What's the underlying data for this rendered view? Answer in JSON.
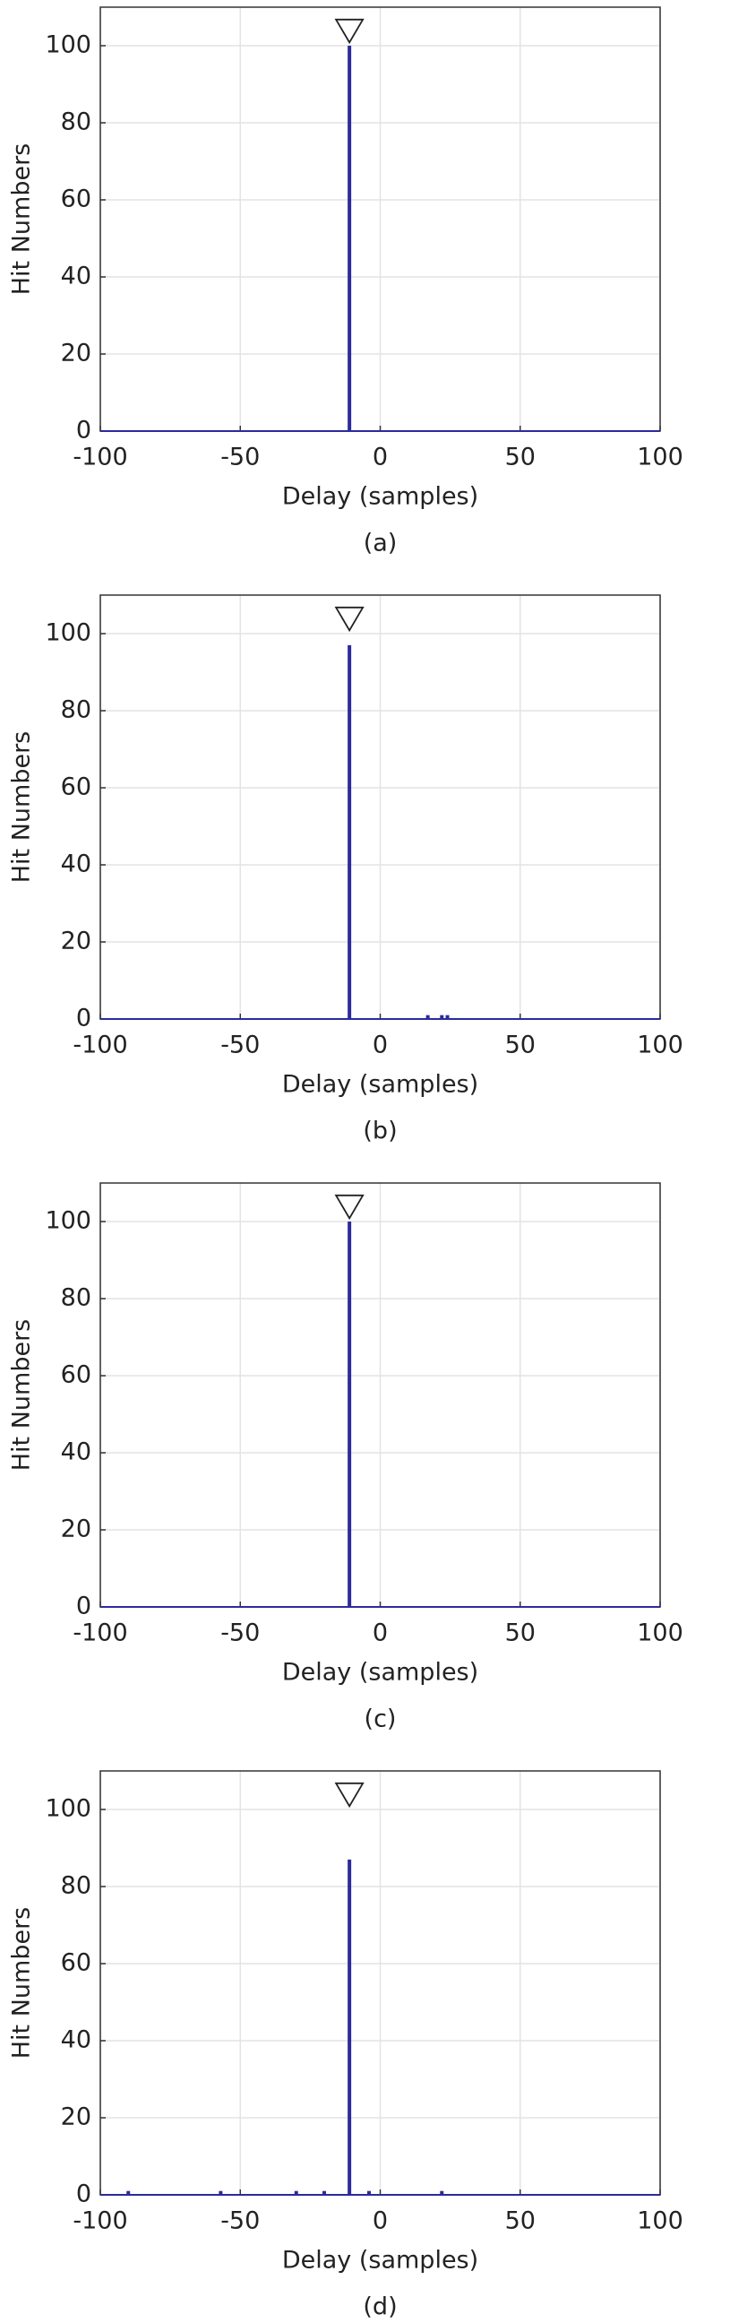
{
  "chart_data": [
    {
      "type": "stem",
      "caption": "(a)",
      "xlabel": "Delay (samples)",
      "ylabel": "Hit Numbers",
      "x": [
        -11
      ],
      "values": [
        100
      ],
      "color": "#2b2b9c",
      "marker": {
        "x": -11,
        "y": 104
      },
      "xlim": [
        -100,
        100
      ],
      "xticks": [
        -100,
        -50,
        0,
        50,
        100
      ],
      "ylim": [
        0,
        110
      ],
      "yticks": [
        0,
        20,
        40,
        60,
        80,
        100
      ],
      "grid": true
    },
    {
      "type": "stem",
      "caption": "(b)",
      "xlabel": "Delay (samples)",
      "ylabel": "Hit Numbers",
      "x": [
        -11,
        17,
        22,
        24
      ],
      "values": [
        97,
        1,
        1,
        1
      ],
      "color": "#2b2b9c",
      "marker": {
        "x": -11,
        "y": 104
      },
      "xlim": [
        -100,
        100
      ],
      "xticks": [
        -100,
        -50,
        0,
        50,
        100
      ],
      "ylim": [
        0,
        110
      ],
      "yticks": [
        0,
        20,
        40,
        60,
        80,
        100
      ],
      "grid": true
    },
    {
      "type": "stem",
      "caption": "(c)",
      "xlabel": "Delay (samples)",
      "ylabel": "Hit Numbers",
      "x": [
        -11
      ],
      "values": [
        100
      ],
      "color": "#2b2b9c",
      "marker": {
        "x": -11,
        "y": 104
      },
      "xlim": [
        -100,
        100
      ],
      "xticks": [
        -100,
        -50,
        0,
        50,
        100
      ],
      "ylim": [
        0,
        110
      ],
      "yticks": [
        0,
        20,
        40,
        60,
        80,
        100
      ],
      "grid": true
    },
    {
      "type": "stem",
      "caption": "(d)",
      "xlabel": "Delay (samples)",
      "ylabel": "Hit Numbers",
      "x": [
        -90,
        -57,
        -30,
        -20,
        -11,
        -4,
        22
      ],
      "values": [
        1,
        1,
        1,
        1,
        87,
        1,
        1
      ],
      "color": "#2b2b9c",
      "marker": {
        "x": -11,
        "y": 104
      },
      "xlim": [
        -100,
        100
      ],
      "xticks": [
        -100,
        -50,
        0,
        50,
        100
      ],
      "ylim": [
        0,
        110
      ],
      "yticks": [
        0,
        20,
        40,
        60,
        80,
        100
      ],
      "grid": true
    }
  ]
}
